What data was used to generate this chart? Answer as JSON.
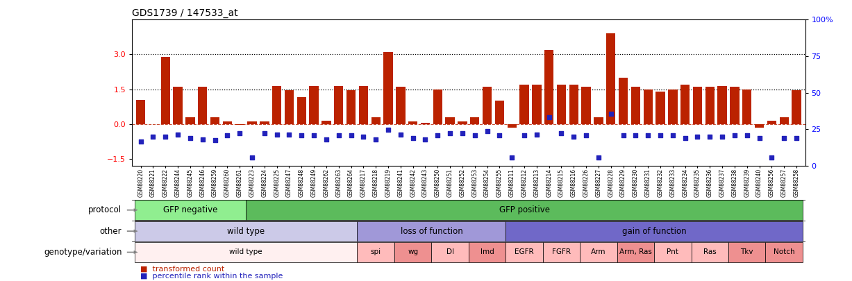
{
  "title": "GDS1739 / 147533_at",
  "samples": [
    "GSM88220",
    "GSM88221",
    "GSM88222",
    "GSM88244",
    "GSM88245",
    "GSM88246",
    "GSM88259",
    "GSM88260",
    "GSM88261",
    "GSM88223",
    "GSM88224",
    "GSM88225",
    "GSM88247",
    "GSM88248",
    "GSM88249",
    "GSM88262",
    "GSM88263",
    "GSM88264",
    "GSM88217",
    "GSM88218",
    "GSM88219",
    "GSM88241",
    "GSM88242",
    "GSM88243",
    "GSM88250",
    "GSM88251",
    "GSM88252",
    "GSM88253",
    "GSM88254",
    "GSM88255",
    "GSM88211",
    "GSM88212",
    "GSM88213",
    "GSM88214",
    "GSM88215",
    "GSM88216",
    "GSM88226",
    "GSM88227",
    "GSM88228",
    "GSM88229",
    "GSM88230",
    "GSM88231",
    "GSM88232",
    "GSM88233",
    "GSM88234",
    "GSM88235",
    "GSM88236",
    "GSM88237",
    "GSM88238",
    "GSM88239",
    "GSM88240",
    "GSM88256",
    "GSM88257",
    "GSM88258"
  ],
  "bar_values": [
    1.05,
    0.0,
    2.9,
    1.6,
    0.28,
    1.6,
    0.3,
    0.12,
    -0.05,
    0.12,
    0.1,
    1.65,
    1.45,
    1.15,
    1.65,
    0.15,
    1.65,
    1.45,
    1.65,
    0.28,
    3.1,
    1.6,
    0.1,
    0.05,
    1.5,
    0.28,
    0.12,
    0.3,
    1.6,
    1.0,
    -0.15,
    1.7,
    1.7,
    3.2,
    1.7,
    1.7,
    1.6,
    0.28,
    3.9,
    2.0,
    1.6,
    1.5,
    1.4,
    1.5,
    1.7,
    1.6,
    1.6,
    1.65,
    1.6,
    1.5,
    -0.15,
    0.15,
    0.28,
    1.45
  ],
  "dot_values": [
    -0.75,
    -0.55,
    -0.55,
    -0.45,
    -0.6,
    -0.65,
    -0.7,
    -0.5,
    -0.4,
    -1.45,
    -0.4,
    -0.45,
    -0.45,
    -0.5,
    -0.5,
    -0.65,
    -0.5,
    -0.5,
    -0.55,
    -0.65,
    -0.25,
    -0.45,
    -0.6,
    -0.65,
    -0.5,
    -0.4,
    -0.4,
    -0.5,
    -0.3,
    -0.5,
    -1.45,
    -0.5,
    -0.45,
    0.28,
    -0.4,
    -0.55,
    -0.5,
    -1.45,
    0.45,
    -0.5,
    -0.5,
    -0.5,
    -0.5,
    -0.5,
    -0.6,
    -0.55,
    -0.55,
    -0.55,
    -0.5,
    -0.5,
    -0.6,
    -1.45,
    -0.6,
    -0.6
  ],
  "protocol_groups": [
    {
      "label": "GFP negative",
      "start": 0,
      "end": 9,
      "color": "#90EE90"
    },
    {
      "label": "GFP positive",
      "start": 9,
      "end": 54,
      "color": "#5CBB5C"
    }
  ],
  "other_groups": [
    {
      "label": "wild type",
      "start": 0,
      "end": 18,
      "color": "#CCCAE8"
    },
    {
      "label": "loss of function",
      "start": 18,
      "end": 30,
      "color": "#A098D8"
    },
    {
      "label": "gain of function",
      "start": 30,
      "end": 54,
      "color": "#7068C8"
    }
  ],
  "genotype_groups": [
    {
      "label": "wild type",
      "start": 0,
      "end": 18,
      "color": "#FFF0F0"
    },
    {
      "label": "spi",
      "start": 18,
      "end": 21,
      "color": "#FFBBBB"
    },
    {
      "label": "wg",
      "start": 21,
      "end": 24,
      "color": "#EE9090"
    },
    {
      "label": "Dl",
      "start": 24,
      "end": 27,
      "color": "#FFBBBB"
    },
    {
      "label": "Imd",
      "start": 27,
      "end": 30,
      "color": "#EE9090"
    },
    {
      "label": "EGFR",
      "start": 30,
      "end": 33,
      "color": "#FFBBBB"
    },
    {
      "label": "FGFR",
      "start": 33,
      "end": 36,
      "color": "#FFBBBB"
    },
    {
      "label": "Arm",
      "start": 36,
      "end": 39,
      "color": "#FFBBBB"
    },
    {
      "label": "Arm, Ras",
      "start": 39,
      "end": 42,
      "color": "#EE9090"
    },
    {
      "label": "Pnt",
      "start": 42,
      "end": 45,
      "color": "#FFBBBB"
    },
    {
      "label": "Ras",
      "start": 45,
      "end": 48,
      "color": "#FFBBBB"
    },
    {
      "label": "Tkv",
      "start": 48,
      "end": 51,
      "color": "#EE9090"
    },
    {
      "label": "Notch",
      "start": 51,
      "end": 54,
      "color": "#EE9090"
    }
  ],
  "ylim_left": [
    -1.8,
    4.5
  ],
  "ylim_right": [
    0,
    100
  ],
  "yticks_left": [
    -1.5,
    0.0,
    1.5,
    3.0
  ],
  "yticks_right": [
    0,
    25,
    50,
    75,
    100
  ],
  "bar_color": "#BB2200",
  "dot_color": "#2222BB",
  "dotted_lines": [
    1.5,
    3.0
  ],
  "hline_y": 0.0
}
